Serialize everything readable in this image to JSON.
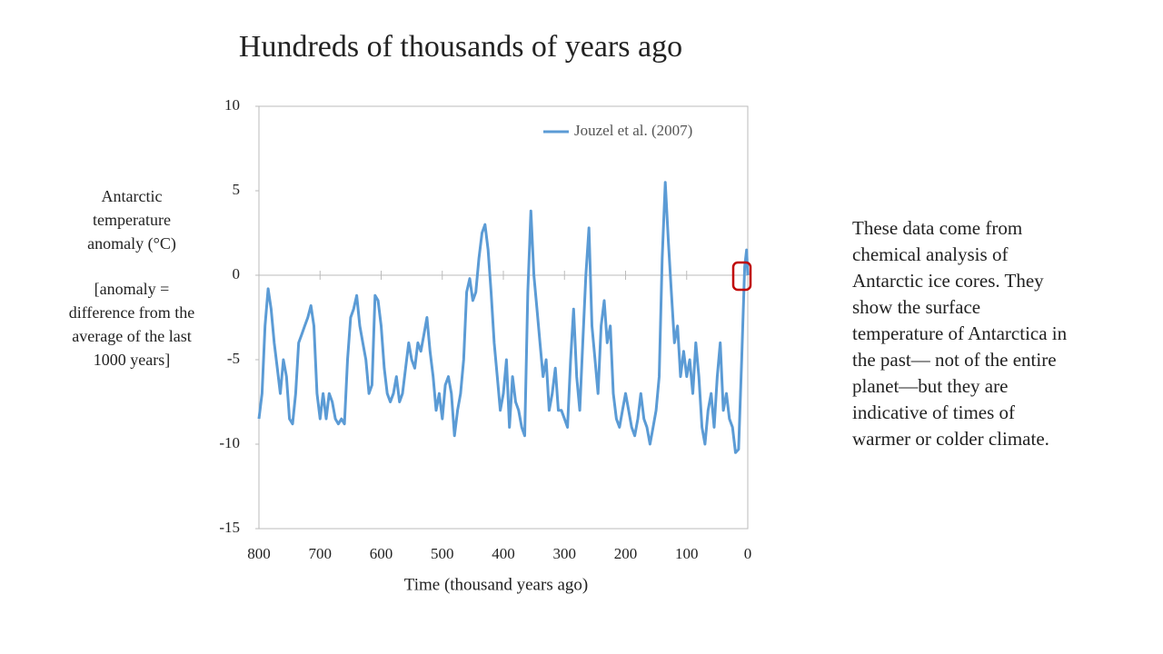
{
  "chart_data": {
    "type": "line",
    "title": "Hundreds of thousands of years ago",
    "xlabel": "Time (thousand years ago)",
    "ylabel": "Antarctic temperature anomaly (°C)",
    "ylabel_note": "[anomaly = difference from the average of the last 1000 years]",
    "side_text": "These data come from chemical analysis of Antarctic ice cores. They show the surface temperature of Antarctica in the past— not of the entire planet—but they are indicative of times of warmer or colder climate.",
    "xlim": [
      800,
      0
    ],
    "xticks": [
      800,
      700,
      600,
      500,
      400,
      300,
      200,
      100,
      0
    ],
    "ylim": [
      -15,
      10
    ],
    "yticks": [
      -15,
      -10,
      -5,
      0,
      5,
      10
    ],
    "legend": "top-right",
    "x": [
      800,
      795,
      790,
      785,
      780,
      775,
      770,
      765,
      760,
      755,
      750,
      745,
      740,
      735,
      730,
      725,
      720,
      715,
      710,
      705,
      700,
      695,
      690,
      685,
      680,
      675,
      670,
      665,
      660,
      655,
      650,
      645,
      640,
      635,
      630,
      625,
      620,
      615,
      610,
      605,
      600,
      595,
      590,
      585,
      580,
      575,
      570,
      565,
      560,
      555,
      550,
      545,
      540,
      535,
      530,
      525,
      520,
      515,
      510,
      505,
      500,
      495,
      490,
      485,
      480,
      475,
      470,
      465,
      460,
      455,
      450,
      445,
      440,
      435,
      430,
      425,
      420,
      415,
      410,
      405,
      400,
      395,
      390,
      385,
      380,
      375,
      370,
      365,
      360,
      355,
      350,
      345,
      340,
      335,
      330,
      325,
      320,
      315,
      310,
      305,
      300,
      295,
      290,
      285,
      280,
      275,
      270,
      265,
      260,
      255,
      250,
      245,
      240,
      235,
      230,
      225,
      220,
      215,
      210,
      205,
      200,
      195,
      190,
      185,
      180,
      175,
      170,
      165,
      160,
      155,
      150,
      145,
      140,
      135,
      130,
      125,
      120,
      115,
      110,
      105,
      100,
      95,
      90,
      85,
      80,
      75,
      70,
      65,
      60,
      55,
      50,
      45,
      40,
      35,
      30,
      25,
      20,
      15,
      10,
      5,
      2,
      0
    ],
    "series": [
      {
        "name": "Jouzel et al. (2007)",
        "color": "#5b9bd5",
        "values": [
          -8.5,
          -7,
          -3,
          -0.8,
          -2,
          -4,
          -5.5,
          -7,
          -5,
          -6,
          -8.5,
          -8.8,
          -7,
          -4,
          -3.5,
          -3,
          -2.5,
          -1.8,
          -3,
          -7,
          -8.5,
          -7,
          -8.5,
          -7,
          -7.5,
          -8.5,
          -8.8,
          -8.5,
          -8.8,
          -5,
          -2.5,
          -2,
          -1.2,
          -3,
          -4,
          -5,
          -7,
          -6.5,
          -1.2,
          -1.5,
          -3,
          -5.5,
          -7,
          -7.5,
          -7,
          -6,
          -7.5,
          -7,
          -5.5,
          -4,
          -5,
          -5.5,
          -4,
          -4.5,
          -3.5,
          -2.5,
          -4.5,
          -6,
          -8,
          -7,
          -8.5,
          -6.5,
          -6,
          -7,
          -9.5,
          -8,
          -7,
          -5,
          -1,
          -0.2,
          -1.5,
          -1,
          1,
          2.5,
          3,
          1.5,
          -1,
          -4,
          -6,
          -8,
          -7,
          -5,
          -9,
          -6,
          -7.5,
          -8,
          -9,
          -9.5,
          -1,
          3.8,
          0,
          -2,
          -4,
          -6,
          -5,
          -8,
          -7,
          -5.5,
          -8,
          -8,
          -8.5,
          -9,
          -5,
          -2,
          -6,
          -8,
          -4,
          0,
          2.8,
          -3,
          -5,
          -7,
          -3,
          -1.5,
          -4,
          -3,
          -7,
          -8.5,
          -9,
          -8,
          -7,
          -8,
          -9,
          -9.5,
          -8.5,
          -7,
          -8.5,
          -9,
          -10,
          -9,
          -8,
          -6,
          1,
          5.5,
          2,
          -1,
          -4,
          -3,
          -6,
          -4.5,
          -6,
          -5,
          -7,
          -4,
          -6,
          -9,
          -10,
          -8,
          -7,
          -9,
          -6,
          -4,
          -8,
          -7,
          -8.5,
          -9,
          -10.5,
          -10.3,
          -5,
          0.5,
          1.5,
          0
        ]
      }
    ]
  }
}
